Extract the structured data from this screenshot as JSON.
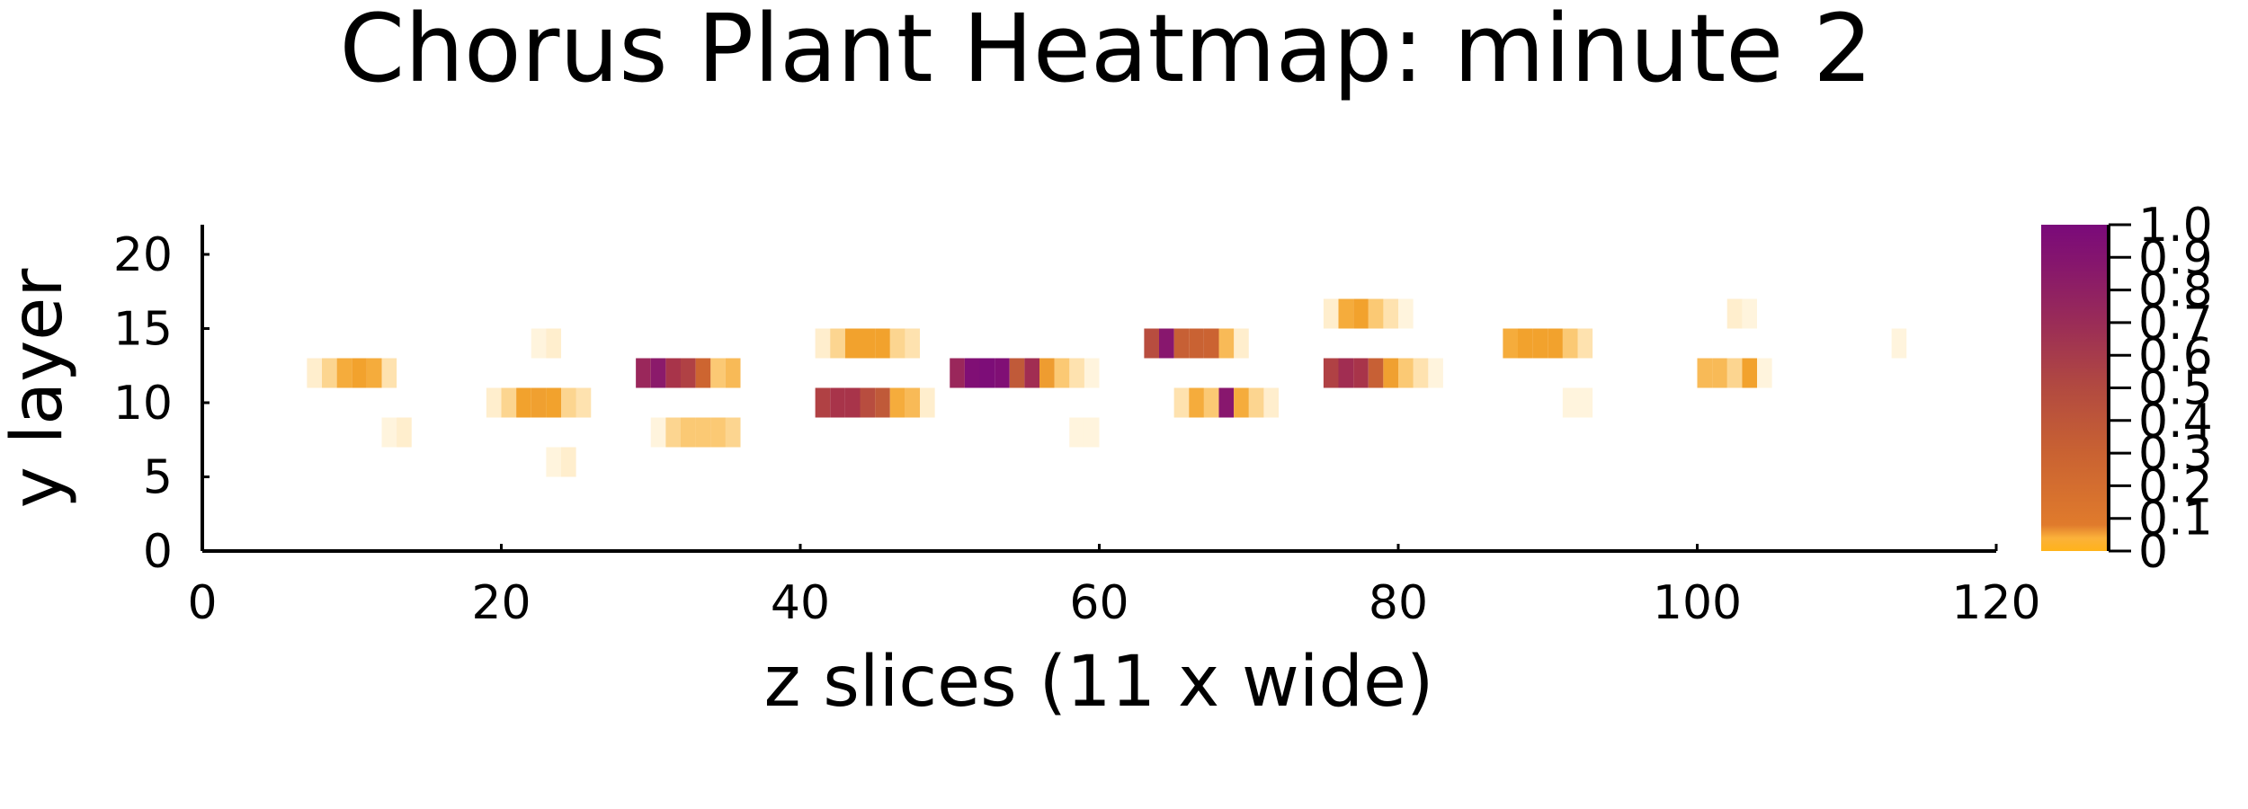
{
  "chart_data": {
    "type": "heatmap",
    "title": "Chorus Plant Heatmap: minute 2",
    "xlabel": "z slices (11 x wide)",
    "ylabel": "y layer",
    "xlim": [
      0,
      120
    ],
    "ylim": [
      0,
      22
    ],
    "x_ticks": [
      "0",
      "20",
      "40",
      "60",
      "80",
      "100",
      "120"
    ],
    "y_ticks": [
      "0",
      "5",
      "10",
      "15",
      "20"
    ],
    "colorbar": {
      "range": [
        0,
        1
      ],
      "ticks": [
        "0",
        "0.1",
        "0.2",
        "0.3",
        "0.4",
        "0.5",
        "0.6",
        "0.7",
        "0.8",
        "0.9",
        "1.0"
      ],
      "colors": [
        "#ffb31a",
        "#f4a630",
        "#d46b2c",
        "#c05a39",
        "#a8344a",
        "#8b1a6b",
        "#7a0a7a"
      ]
    },
    "grid": false,
    "cells": [
      {
        "x": 7,
        "y": 12,
        "v": 0.01
      },
      {
        "x": 8,
        "y": 12,
        "v": 0.03
      },
      {
        "x": 9,
        "y": 12,
        "v": 0.06
      },
      {
        "x": 10,
        "y": 12,
        "v": 0.07
      },
      {
        "x": 11,
        "y": 12,
        "v": 0.06
      },
      {
        "x": 12,
        "y": 12,
        "v": 0.02
      },
      {
        "x": 12,
        "y": 8,
        "v": 0.005
      },
      {
        "x": 13,
        "y": 8,
        "v": 0.01
      },
      {
        "x": 19,
        "y": 10,
        "v": 0.01
      },
      {
        "x": 20,
        "y": 10,
        "v": 0.03
      },
      {
        "x": 21,
        "y": 10,
        "v": 0.07
      },
      {
        "x": 22,
        "y": 10,
        "v": 0.08
      },
      {
        "x": 23,
        "y": 10,
        "v": 0.07
      },
      {
        "x": 24,
        "y": 10,
        "v": 0.03
      },
      {
        "x": 25,
        "y": 10,
        "v": 0.02
      },
      {
        "x": 23,
        "y": 6,
        "v": 0.005
      },
      {
        "x": 24,
        "y": 6,
        "v": 0.01
      },
      {
        "x": 22,
        "y": 14,
        "v": 0.005
      },
      {
        "x": 23,
        "y": 14,
        "v": 0.01
      },
      {
        "x": 29,
        "y": 12,
        "v": 0.6
      },
      {
        "x": 30,
        "y": 12,
        "v": 0.7
      },
      {
        "x": 31,
        "y": 12,
        "v": 0.5
      },
      {
        "x": 32,
        "y": 12,
        "v": 0.45
      },
      {
        "x": 33,
        "y": 12,
        "v": 0.25
      },
      {
        "x": 34,
        "y": 12,
        "v": 0.04
      },
      {
        "x": 35,
        "y": 12,
        "v": 0.05
      },
      {
        "x": 31,
        "y": 8,
        "v": 0.03
      },
      {
        "x": 32,
        "y": 8,
        "v": 0.04
      },
      {
        "x": 33,
        "y": 8,
        "v": 0.04
      },
      {
        "x": 34,
        "y": 8,
        "v": 0.04
      },
      {
        "x": 35,
        "y": 8,
        "v": 0.03
      },
      {
        "x": 30,
        "y": 8,
        "v": 0.005
      },
      {
        "x": 41,
        "y": 10,
        "v": 0.45
      },
      {
        "x": 42,
        "y": 10,
        "v": 0.5
      },
      {
        "x": 43,
        "y": 10,
        "v": 0.5
      },
      {
        "x": 44,
        "y": 10,
        "v": 0.4
      },
      {
        "x": 45,
        "y": 10,
        "v": 0.35
      },
      {
        "x": 46,
        "y": 10,
        "v": 0.06
      },
      {
        "x": 47,
        "y": 10,
        "v": 0.05
      },
      {
        "x": 48,
        "y": 10,
        "v": 0.01
      },
      {
        "x": 41,
        "y": 14,
        "v": 0.01
      },
      {
        "x": 42,
        "y": 14,
        "v": 0.03
      },
      {
        "x": 43,
        "y": 14,
        "v": 0.07
      },
      {
        "x": 44,
        "y": 14,
        "v": 0.07
      },
      {
        "x": 45,
        "y": 14,
        "v": 0.07
      },
      {
        "x": 46,
        "y": 14,
        "v": 0.03
      },
      {
        "x": 47,
        "y": 14,
        "v": 0.02
      },
      {
        "x": 50,
        "y": 12,
        "v": 0.6
      },
      {
        "x": 51,
        "y": 12,
        "v": 0.9
      },
      {
        "x": 52,
        "y": 12,
        "v": 0.95
      },
      {
        "x": 53,
        "y": 12,
        "v": 0.9
      },
      {
        "x": 54,
        "y": 12,
        "v": 0.35
      },
      {
        "x": 55,
        "y": 12,
        "v": 0.55
      },
      {
        "x": 56,
        "y": 12,
        "v": 0.09
      },
      {
        "x": 57,
        "y": 12,
        "v": 0.04
      },
      {
        "x": 58,
        "y": 12,
        "v": 0.02
      },
      {
        "x": 59,
        "y": 12,
        "v": 0.005
      },
      {
        "x": 58,
        "y": 8,
        "v": 0.005
      },
      {
        "x": 59,
        "y": 8,
        "v": 0.005
      },
      {
        "x": 63,
        "y": 14,
        "v": 0.4
      },
      {
        "x": 64,
        "y": 14,
        "v": 0.75
      },
      {
        "x": 65,
        "y": 14,
        "v": 0.3
      },
      {
        "x": 66,
        "y": 14,
        "v": 0.28
      },
      {
        "x": 67,
        "y": 14,
        "v": 0.27
      },
      {
        "x": 68,
        "y": 14,
        "v": 0.05
      },
      {
        "x": 69,
        "y": 14,
        "v": 0.01
      },
      {
        "x": 65,
        "y": 10,
        "v": 0.02
      },
      {
        "x": 66,
        "y": 10,
        "v": 0.06
      },
      {
        "x": 67,
        "y": 10,
        "v": 0.04
      },
      {
        "x": 68,
        "y": 10,
        "v": 0.75
      },
      {
        "x": 69,
        "y": 10,
        "v": 0.06
      },
      {
        "x": 70,
        "y": 10,
        "v": 0.03
      },
      {
        "x": 71,
        "y": 10,
        "v": 0.01
      },
      {
        "x": 75,
        "y": 12,
        "v": 0.45
      },
      {
        "x": 76,
        "y": 12,
        "v": 0.55
      },
      {
        "x": 77,
        "y": 12,
        "v": 0.5
      },
      {
        "x": 78,
        "y": 12,
        "v": 0.3
      },
      {
        "x": 79,
        "y": 12,
        "v": 0.08
      },
      {
        "x": 80,
        "y": 12,
        "v": 0.04
      },
      {
        "x": 81,
        "y": 12,
        "v": 0.02
      },
      {
        "x": 82,
        "y": 12,
        "v": 0.005
      },
      {
        "x": 75,
        "y": 16,
        "v": 0.01
      },
      {
        "x": 76,
        "y": 16,
        "v": 0.06
      },
      {
        "x": 77,
        "y": 16,
        "v": 0.07
      },
      {
        "x": 78,
        "y": 16,
        "v": 0.04
      },
      {
        "x": 79,
        "y": 16,
        "v": 0.02
      },
      {
        "x": 80,
        "y": 16,
        "v": 0.005
      },
      {
        "x": 87,
        "y": 14,
        "v": 0.06
      },
      {
        "x": 88,
        "y": 14,
        "v": 0.07
      },
      {
        "x": 89,
        "y": 14,
        "v": 0.07
      },
      {
        "x": 90,
        "y": 14,
        "v": 0.07
      },
      {
        "x": 91,
        "y": 14,
        "v": 0.04
      },
      {
        "x": 92,
        "y": 14,
        "v": 0.02
      },
      {
        "x": 91,
        "y": 10,
        "v": 0.005
      },
      {
        "x": 92,
        "y": 10,
        "v": 0.005
      },
      {
        "x": 100,
        "y": 12,
        "v": 0.05
      },
      {
        "x": 101,
        "y": 12,
        "v": 0.05
      },
      {
        "x": 102,
        "y": 12,
        "v": 0.03
      },
      {
        "x": 103,
        "y": 12,
        "v": 0.07
      },
      {
        "x": 104,
        "y": 12,
        "v": 0.005
      },
      {
        "x": 102,
        "y": 16,
        "v": 0.01
      },
      {
        "x": 103,
        "y": 16,
        "v": 0.005
      },
      {
        "x": 113,
        "y": 14,
        "v": 0.005
      }
    ]
  }
}
